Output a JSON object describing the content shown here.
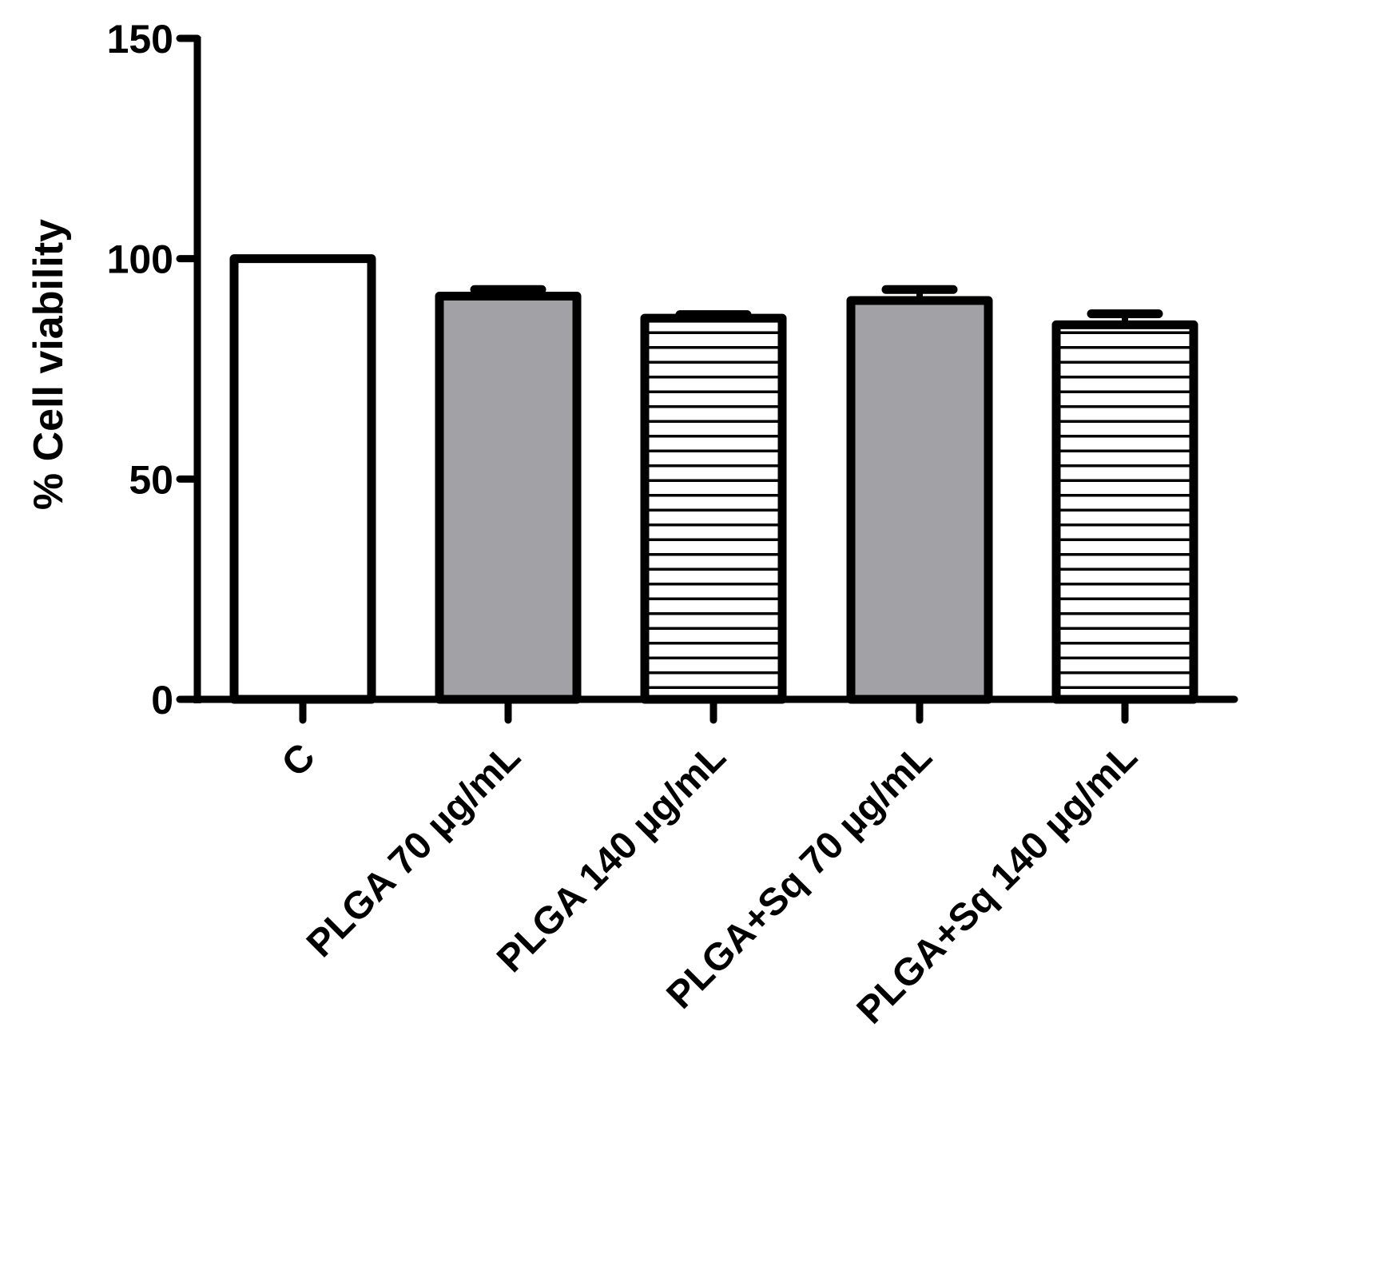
{
  "chart_data": {
    "type": "bar",
    "title": "",
    "xlabel": "",
    "ylabel": "% Cell viability",
    "ylim": [
      0,
      150
    ],
    "yticks": [
      0,
      50,
      100,
      150
    ],
    "categories": [
      "C",
      "PLGA 70 µg/mL",
      "PLGA 140 µg/mL",
      "PLGA+Sq 70 µg/mL",
      "PLGA+Sq 140 µg/mL"
    ],
    "values": [
      100,
      91.5,
      86.5,
      90.5,
      85
    ],
    "errors": [
      0,
      1.5,
      0.8,
      2.5,
      2.5
    ],
    "fills": [
      "white",
      "gray",
      "horizontal-stripes",
      "gray",
      "horizontal-stripes"
    ],
    "colors": {
      "axis": "#000000",
      "bar_outline": "#000000",
      "gray_fill": "#a2a1a6",
      "white_fill": "#ffffff",
      "stripe": "#000000"
    },
    "grid": false,
    "legend": "none"
  }
}
